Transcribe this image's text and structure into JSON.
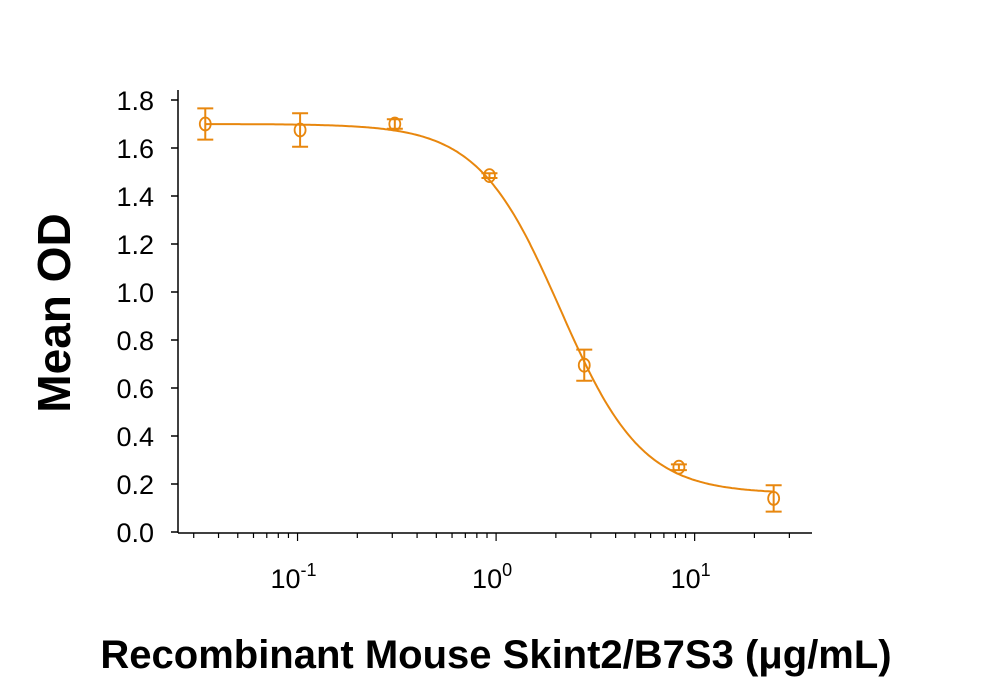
{
  "chart_data": {
    "type": "scatter",
    "title": "",
    "xlabel": "Recombinant Mouse Skint2/B7S3 (μg/mL)",
    "ylabel": "Mean OD",
    "x_scale": "log",
    "xlim": [
      0.025,
      39
    ],
    "ylim": [
      0,
      1.8
    ],
    "x_ticks": [
      {
        "base": "10",
        "exp": "-1",
        "value": 0.1
      },
      {
        "base": "10",
        "exp": "0",
        "value": 1
      },
      {
        "base": "10",
        "exp": "1",
        "value": 10
      }
    ],
    "y_ticks": [
      "0.0",
      "0.2",
      "0.4",
      "0.6",
      "0.8",
      "1.0",
      "1.2",
      "1.4",
      "1.6",
      "1.8"
    ],
    "grid": false,
    "color": "#E8870E",
    "points": [
      {
        "x": 0.0343,
        "y": 1.7,
        "err": 0.065
      },
      {
        "x": 0.103,
        "y": 1.675,
        "err": 0.07
      },
      {
        "x": 0.309,
        "y": 1.7,
        "err": 0.02
      },
      {
        "x": 0.926,
        "y": 1.485,
        "err": 0.01
      },
      {
        "x": 2.78,
        "y": 0.695,
        "err": 0.065
      },
      {
        "x": 8.33,
        "y": 0.27,
        "err": 0.012
      },
      {
        "x": 25,
        "y": 0.14,
        "err": 0.055
      }
    ],
    "fit": {
      "model": "4PL",
      "top": 1.7,
      "bottom": 0.16,
      "ec50": 2.1,
      "hill": 2.1
    }
  }
}
